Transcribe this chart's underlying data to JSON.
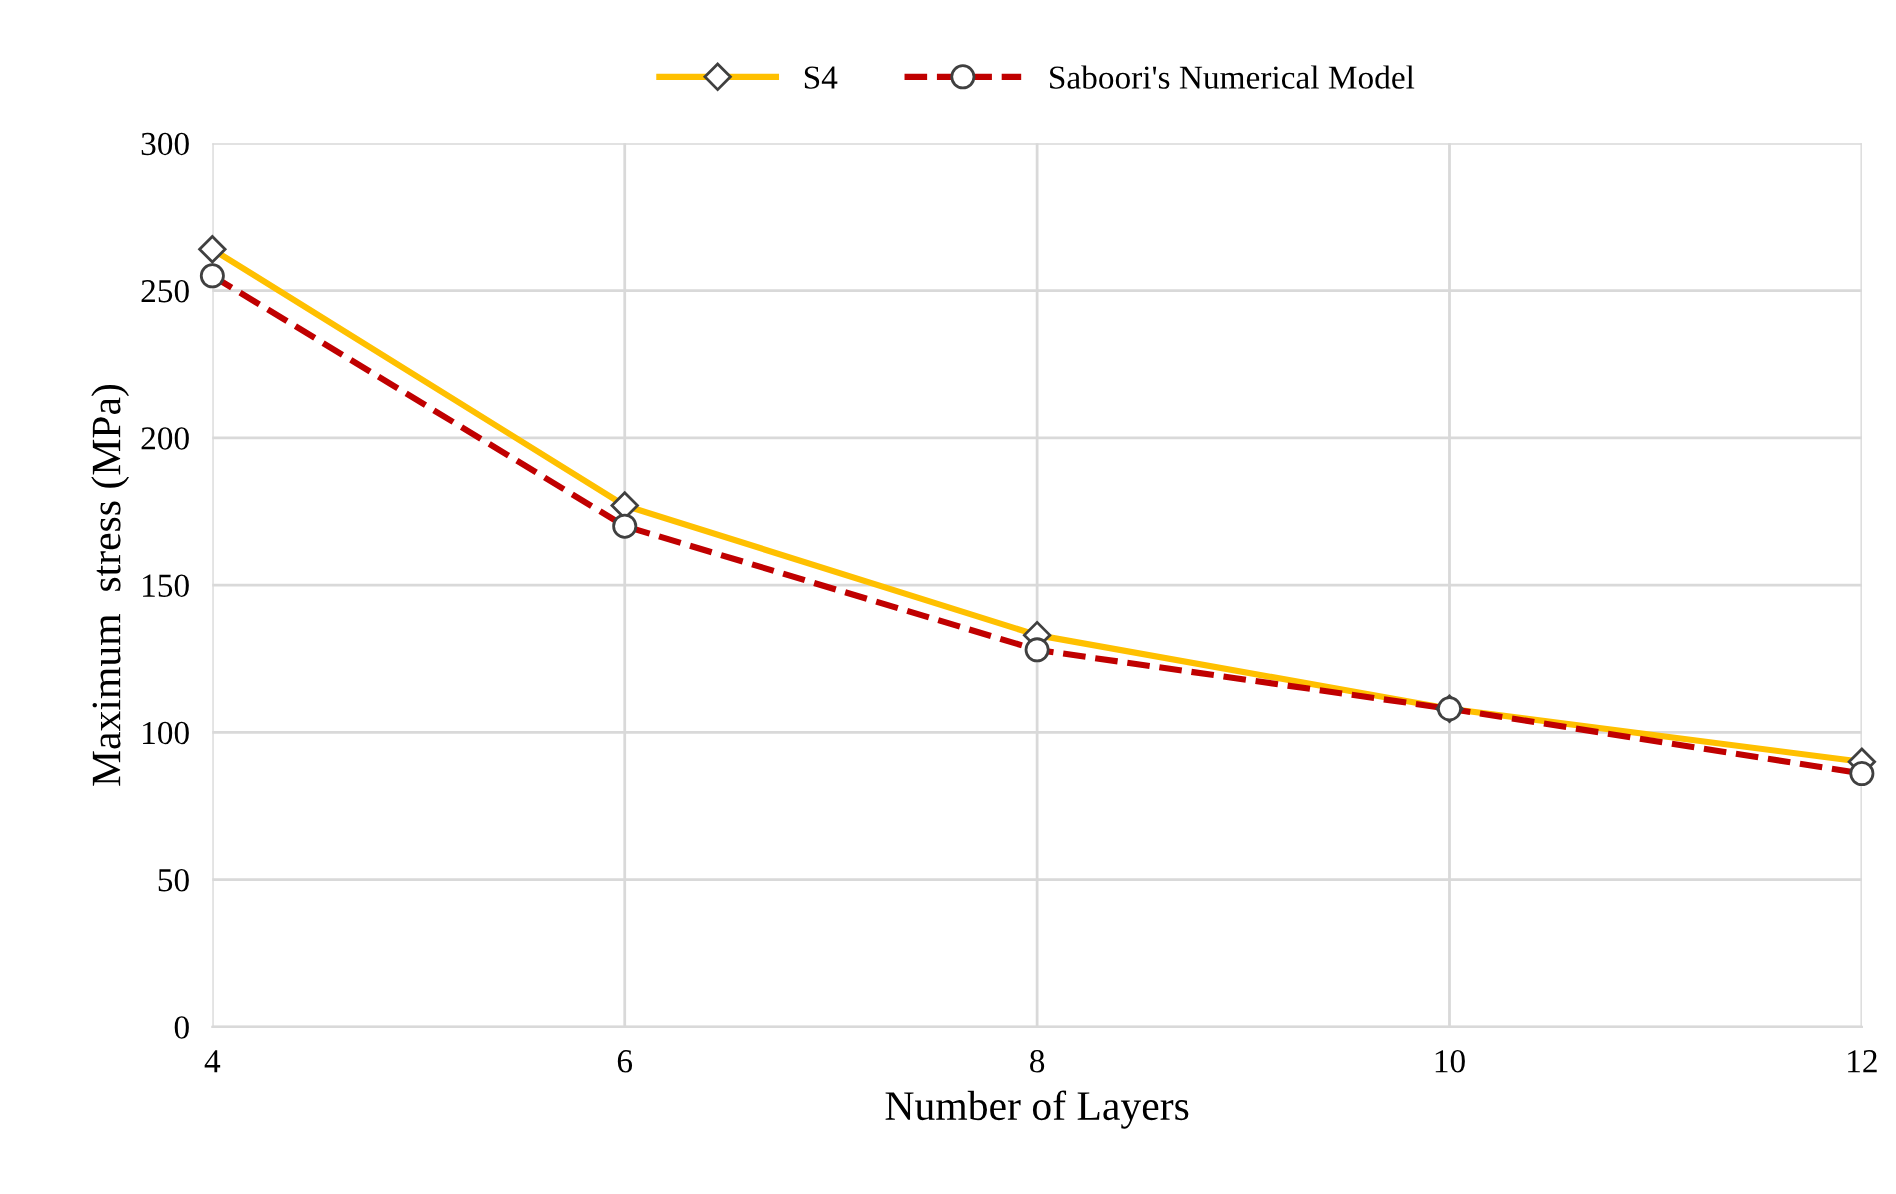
{
  "chart_data": {
    "type": "line",
    "xlabel": "Number of Layers",
    "ylabel": "Maximum  stress (MPa)",
    "x": [
      4,
      6,
      8,
      10,
      12
    ],
    "series": [
      {
        "name": "S4",
        "color": "#ffc000",
        "values": [
          264,
          177,
          133,
          108,
          90
        ],
        "marker": "diamond",
        "line_style": "solid"
      },
      {
        "name": "Saboori's Numerical Model",
        "color": "#c00000",
        "values": [
          255,
          170,
          128,
          108,
          86
        ],
        "marker": "circle",
        "line_style": "dashed"
      }
    ],
    "xlim": [
      4,
      12
    ],
    "xticks": [
      4,
      6,
      8,
      10,
      12
    ],
    "ylim": [
      0,
      300
    ],
    "yticks": [
      0,
      50,
      100,
      150,
      200,
      250,
      300
    ],
    "grid": true,
    "legend": "top"
  }
}
